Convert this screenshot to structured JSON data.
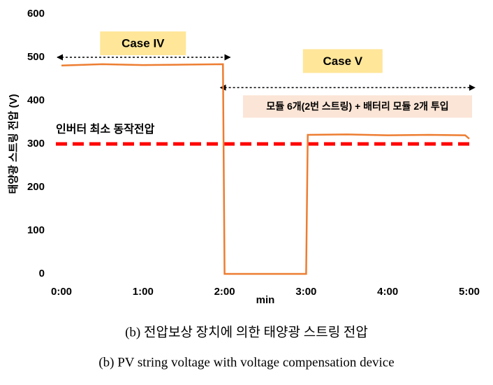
{
  "chart_data": {
    "type": "line",
    "x_label": "min",
    "y_label": "태양광 스트링 전압 (V)",
    "x": [
      0,
      0.5,
      1,
      1.5,
      1.98,
      2.0,
      2.5,
      3.0,
      3.02,
      3.5,
      4,
      4.5,
      4.95,
      5.0
    ],
    "series": [
      {
        "name": "PV string voltage",
        "color": "#ed7d31",
        "values": [
          481,
          484,
          482,
          483,
          484,
          0,
          0,
          0,
          321,
          322,
          320,
          321,
          320,
          312
        ]
      }
    ],
    "xlim": [
      0,
      5
    ],
    "xticks": [
      {
        "value": 0,
        "label": "0:00"
      },
      {
        "value": 1,
        "label": "1:00"
      },
      {
        "value": 2,
        "label": "2:00"
      },
      {
        "value": 3,
        "label": "3:00"
      },
      {
        "value": 4,
        "label": "4:00"
      },
      {
        "value": 5,
        "label": "5:00"
      }
    ],
    "ylim": [
      0,
      600
    ],
    "yticks": [
      0,
      100,
      200,
      300,
      400,
      500,
      600
    ],
    "reference_line": {
      "value": 300,
      "label": "인버터 최소 동작전압",
      "color": "#ff0000"
    },
    "annotations": [
      {
        "text": "Case IV",
        "x": [
          0,
          2
        ],
        "y": 500
      },
      {
        "text": "Case V",
        "x": [
          2,
          5
        ],
        "y": 430,
        "note": "모듈 6개(2번 스트링) + 배터리 모듈 2개 투입"
      }
    ]
  },
  "captions": [
    "(b) 전압보상 장치에 의한 태양광 스트링 전압",
    "(b) PV string voltage with voltage compensation device"
  ]
}
